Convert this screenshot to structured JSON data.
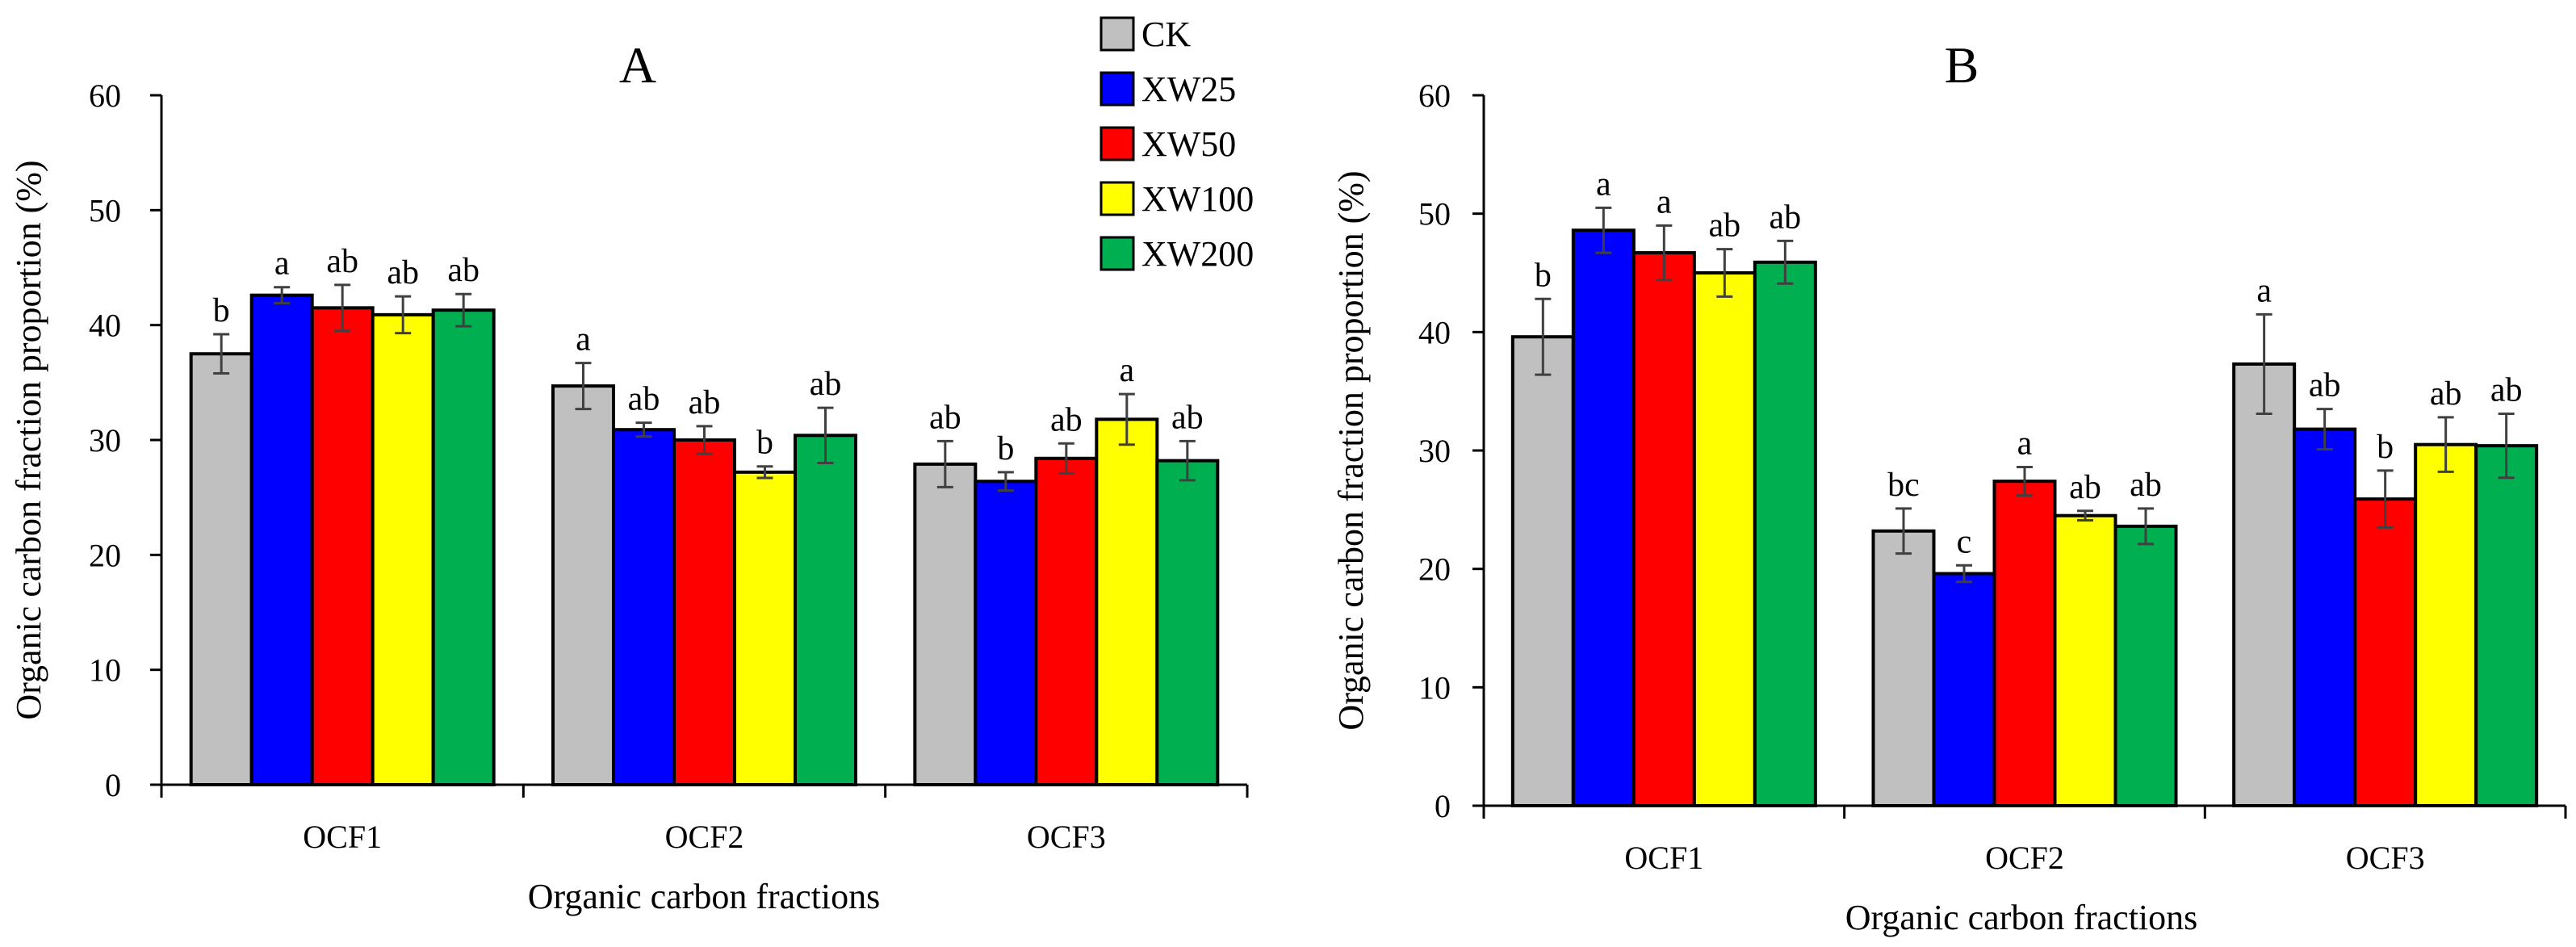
{
  "series_colors": {
    "CK": "#c0c0c0",
    "XW25": "#0000ff",
    "XW50": "#ff0000",
    "XW100": "#ffff00",
    "XW200": "#00b050"
  },
  "legend": {
    "entries": [
      "CK",
      "XW25",
      "XW50",
      "XW100",
      "XW200"
    ]
  },
  "chart_data": [
    {
      "type": "bar",
      "title": "A",
      "xlabel": "Organic carbon fractions",
      "ylabel": "Organic carbon fraction proportion (%)",
      "ylim": [
        0,
        60
      ],
      "yticks": [
        "0",
        "10",
        "20",
        "30",
        "40",
        "50",
        "60"
      ],
      "categories": [
        "OCF1",
        "OCF2",
        "OCF3"
      ],
      "series": [
        {
          "name": "CK",
          "values": [
            37.5,
            34.7,
            27.9
          ],
          "errors": [
            1.7,
            2.0,
            2.0
          ],
          "labels": [
            "b",
            "a",
            "ab"
          ]
        },
        {
          "name": "XW25",
          "values": [
            42.6,
            30.9,
            26.4
          ],
          "errors": [
            0.7,
            0.6,
            0.8
          ],
          "labels": [
            "a",
            "ab",
            "b"
          ]
        },
        {
          "name": "XW50",
          "values": [
            41.5,
            30.0,
            28.4
          ],
          "errors": [
            2.0,
            1.2,
            1.3
          ],
          "labels": [
            "ab",
            "ab",
            "ab"
          ]
        },
        {
          "name": "XW100",
          "values": [
            40.9,
            27.2,
            31.8
          ],
          "errors": [
            1.6,
            0.5,
            2.2
          ],
          "labels": [
            "ab",
            "b",
            "a"
          ]
        },
        {
          "name": "XW200",
          "values": [
            41.3,
            30.4,
            28.2
          ],
          "errors": [
            1.4,
            2.4,
            1.7
          ],
          "labels": [
            "ab",
            "ab",
            "ab"
          ]
        }
      ]
    },
    {
      "type": "bar",
      "title": "B",
      "xlabel": "Organic carbon fractions",
      "ylabel": "Organic carbon fraction proportion (%)",
      "ylim": [
        0,
        60
      ],
      "yticks": [
        "0",
        "10",
        "20",
        "30",
        "40",
        "50",
        "60"
      ],
      "categories": [
        "OCF1",
        "OCF2",
        "OCF3"
      ],
      "series": [
        {
          "name": "CK",
          "values": [
            39.6,
            23.2,
            37.3
          ],
          "errors": [
            3.2,
            1.9,
            4.2
          ],
          "labels": [
            "b",
            "bc",
            "a"
          ]
        },
        {
          "name": "XW25",
          "values": [
            48.6,
            19.6,
            31.8
          ],
          "errors": [
            1.9,
            0.7,
            1.7
          ],
          "labels": [
            "a",
            "c",
            "ab"
          ]
        },
        {
          "name": "XW50",
          "values": [
            46.7,
            27.4,
            25.9
          ],
          "errors": [
            2.3,
            1.2,
            2.4
          ],
          "labels": [
            "a",
            "a",
            "b"
          ]
        },
        {
          "name": "XW100",
          "values": [
            45.0,
            24.5,
            30.5
          ],
          "errors": [
            2.0,
            0.4,
            2.3
          ],
          "labels": [
            "ab",
            "ab",
            "ab"
          ]
        },
        {
          "name": "XW200",
          "values": [
            45.9,
            23.6,
            30.4
          ],
          "errors": [
            1.8,
            1.5,
            2.7
          ],
          "labels": [
            "ab",
            "ab",
            "ab"
          ]
        }
      ]
    }
  ]
}
